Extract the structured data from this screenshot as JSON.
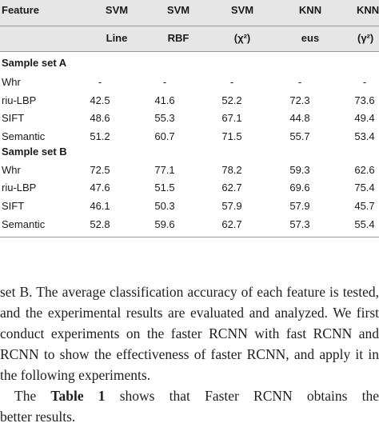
{
  "table": {
    "headers_top": [
      "Feature",
      "SVM",
      "SVM",
      "SVM",
      "KNN",
      "KNN"
    ],
    "headers_sub": [
      "",
      "Line",
      "RBF",
      "(χ²)",
      "eus",
      "(γ²)"
    ],
    "sections": [
      {
        "title": "Sample set A",
        "rows": [
          {
            "feature": "Whr",
            "values": [
              "-",
              "-",
              "-",
              "-",
              "-"
            ]
          },
          {
            "feature": "riu-LBP",
            "values": [
              "42.5",
              "41.6",
              "52.2",
              "72.3",
              "73.6"
            ]
          },
          {
            "feature": "SIFT",
            "values": [
              "48.6",
              "55.3",
              "67.1",
              "44.8",
              "49.4"
            ]
          },
          {
            "feature": "Semantic",
            "values": [
              "51.2",
              "60.7",
              "71.5",
              "55.7",
              "53.4"
            ]
          }
        ]
      },
      {
        "title": "Sample set B",
        "rows": [
          {
            "feature": "Whr",
            "values": [
              "72.5",
              "77.1",
              "78.2",
              "59.3",
              "62.6"
            ]
          },
          {
            "feature": "riu-LBP",
            "values": [
              "47.6",
              "51.5",
              "62.7",
              "69.6",
              "75.4"
            ]
          },
          {
            "feature": "SIFT",
            "values": [
              "46.1",
              "50.3",
              "57.9",
              "57.9",
              "45.7"
            ]
          },
          {
            "feature": "Semantic",
            "values": [
              "52.8",
              "59.6",
              "62.7",
              "57.3",
              "55.4"
            ]
          }
        ]
      }
    ]
  },
  "body_text": {
    "lines": [
      "set B. The average classification accuracy of each feature is tested,",
      "and the experimental results are evaluated and analyzed. We first",
      "conduct experiments on the faster RCNN with fast RCNN and",
      "RCNN to show the effectiveness of faster RCNN, and apply it in",
      "the following experiments."
    ],
    "line6_pre": "The ",
    "line6_ref": "Table 1",
    "line6_post": " shows that Faster RCNN obtains the",
    "line7": "better results."
  }
}
